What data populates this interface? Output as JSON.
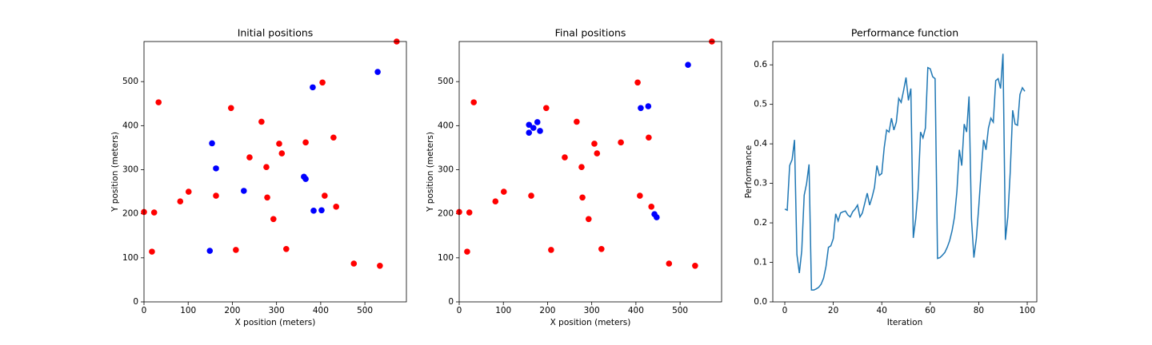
{
  "chart_data": [
    {
      "type": "scatter",
      "title": "Initial positions",
      "x_label": "X position (meters)",
      "y_label": "Y position (meters)",
      "xlim": [
        0,
        594
      ],
      "ylim": [
        0,
        591
      ],
      "xticks": [
        0,
        100,
        200,
        300,
        400,
        500
      ],
      "yticks": [
        0,
        100,
        200,
        300,
        400,
        500
      ],
      "series": [
        {
          "color": "#ff0000",
          "x": [
            0,
            23,
            18,
            33,
            82,
            101,
            163,
            197,
            208,
            239,
            266,
            277,
            279,
            293,
            306,
            312,
            322,
            366,
            404,
            409,
            429,
            435,
            475,
            534,
            572
          ],
          "values": [
            204,
            203,
            114,
            453,
            228,
            250,
            241,
            440,
            118,
            328,
            409,
            306,
            237,
            188,
            359,
            337,
            120,
            362,
            498,
            241,
            373,
            216,
            87,
            82,
            591
          ]
        },
        {
          "color": "#0000ff",
          "x": [
            154,
            163,
            226,
            149,
            362,
            366,
            382,
            384,
            402,
            529
          ],
          "values": [
            360,
            303,
            252,
            116,
            284,
            279,
            487,
            207,
            208,
            522
          ]
        }
      ]
    },
    {
      "type": "scatter",
      "title": "Final positions",
      "x_label": "X position (meters)",
      "y_label": "Y position (meters)",
      "xlim": [
        0,
        594
      ],
      "ylim": [
        0,
        591
      ],
      "xticks": [
        0,
        100,
        200,
        300,
        400,
        500
      ],
      "yticks": [
        0,
        100,
        200,
        300,
        400,
        500
      ],
      "series": [
        {
          "color": "#ff0000",
          "x": [
            0,
            23,
            18,
            33,
            82,
            101,
            163,
            197,
            208,
            239,
            266,
            277,
            279,
            293,
            306,
            312,
            322,
            366,
            404,
            409,
            429,
            435,
            475,
            534,
            572
          ],
          "values": [
            204,
            203,
            114,
            453,
            228,
            250,
            241,
            440,
            118,
            328,
            409,
            306,
            237,
            188,
            359,
            337,
            120,
            362,
            498,
            241,
            373,
            216,
            87,
            82,
            591
          ]
        },
        {
          "color": "#0000ff",
          "x": [
            158,
            158,
            168,
            177,
            183,
            411,
            428,
            442,
            447,
            518
          ],
          "values": [
            402,
            384,
            395,
            408,
            388,
            440,
            444,
            199,
            192,
            538
          ]
        }
      ]
    },
    {
      "type": "line",
      "title": "Performance function",
      "x_label": "Iteration",
      "y_label": "Performance",
      "xlim": [
        -4.95,
        103.95
      ],
      "ylim": [
        0,
        0.659
      ],
      "xticks": [
        0,
        20,
        40,
        60,
        80,
        100
      ],
      "yticks": [
        {
          "value": 0,
          "label": "0.0"
        },
        0.1,
        0.2,
        0.3,
        0.4,
        0.5,
        0.6
      ],
      "color": "#1f77b4",
      "x": [
        0,
        1,
        2,
        3,
        4,
        5,
        6,
        7,
        8,
        9,
        10,
        11,
        12,
        13,
        14,
        15,
        16,
        17,
        18,
        19,
        20,
        21,
        22,
        23,
        24,
        25,
        26,
        27,
        28,
        29,
        30,
        31,
        32,
        33,
        34,
        35,
        36,
        37,
        38,
        39,
        40,
        41,
        42,
        43,
        44,
        45,
        46,
        47,
        48,
        49,
        50,
        51,
        52,
        53,
        54,
        55,
        56,
        57,
        58,
        59,
        60,
        61,
        62,
        63,
        64,
        65,
        66,
        67,
        68,
        69,
        70,
        71,
        72,
        73,
        74,
        75,
        76,
        77,
        78,
        79,
        80,
        81,
        82,
        83,
        84,
        85,
        86,
        87,
        88,
        89,
        90,
        91,
        92,
        93,
        94,
        95,
        96,
        97,
        98,
        99
      ],
      "values": [
        0.235,
        0.232,
        0.345,
        0.36,
        0.41,
        0.12,
        0.073,
        0.13,
        0.27,
        0.3,
        0.348,
        0.03,
        0.03,
        0.033,
        0.037,
        0.045,
        0.06,
        0.09,
        0.138,
        0.142,
        0.16,
        0.223,
        0.205,
        0.225,
        0.228,
        0.23,
        0.22,
        0.215,
        0.228,
        0.235,
        0.245,
        0.215,
        0.225,
        0.25,
        0.275,
        0.245,
        0.265,
        0.29,
        0.345,
        0.32,
        0.325,
        0.39,
        0.435,
        0.43,
        0.465,
        0.435,
        0.455,
        0.515,
        0.505,
        0.535,
        0.568,
        0.51,
        0.54,
        0.162,
        0.21,
        0.285,
        0.43,
        0.415,
        0.44,
        0.593,
        0.59,
        0.57,
        0.565,
        0.11,
        0.112,
        0.118,
        0.125,
        0.138,
        0.155,
        0.18,
        0.215,
        0.28,
        0.385,
        0.345,
        0.45,
        0.43,
        0.52,
        0.21,
        0.112,
        0.16,
        0.24,
        0.33,
        0.41,
        0.385,
        0.44,
        0.465,
        0.455,
        0.56,
        0.565,
        0.54,
        0.628,
        0.157,
        0.215,
        0.33,
        0.485,
        0.45,
        0.447,
        0.525,
        0.542,
        0.533
      ]
    }
  ]
}
